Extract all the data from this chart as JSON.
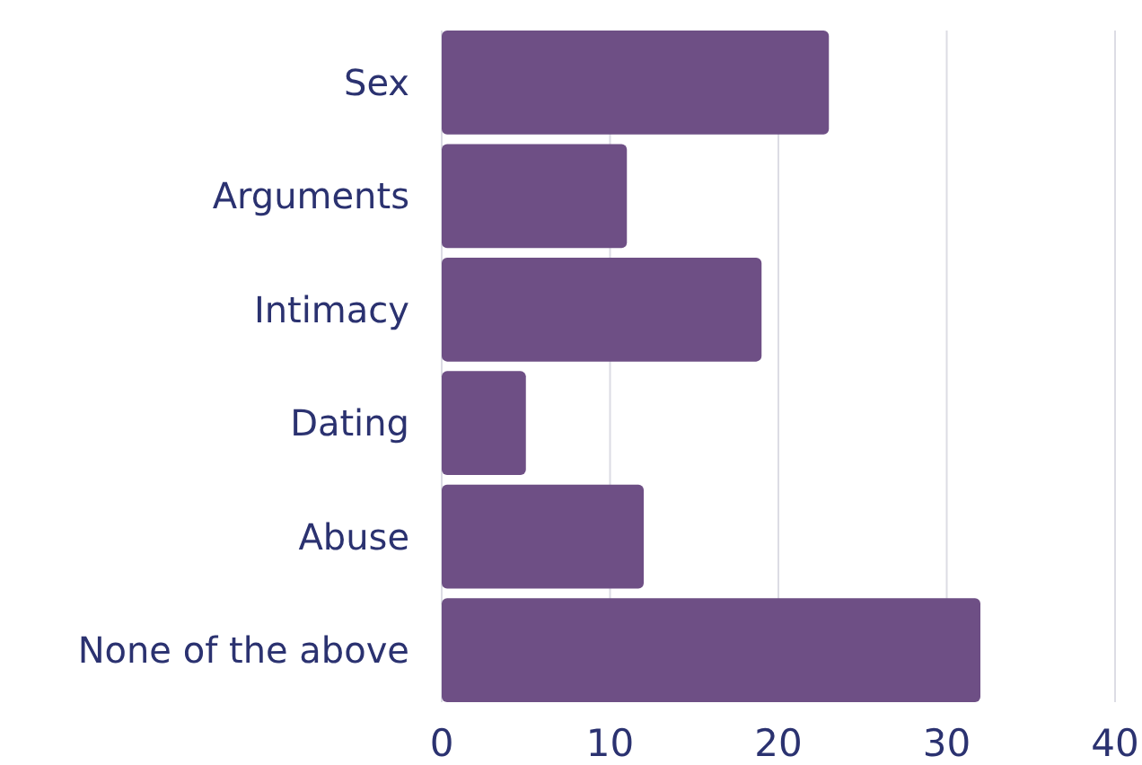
{
  "chart_data": {
    "type": "bar",
    "orientation": "horizontal",
    "categories": [
      "Sex",
      "Arguments",
      "Intimacy",
      "Dating",
      "Abuse",
      "None of the above"
    ],
    "values": [
      23,
      11,
      19,
      5,
      12,
      32
    ],
    "color": "#6e4f85",
    "xlim": [
      0,
      40
    ],
    "xticks": [
      0,
      10,
      20,
      30,
      40
    ],
    "grid": "x"
  }
}
